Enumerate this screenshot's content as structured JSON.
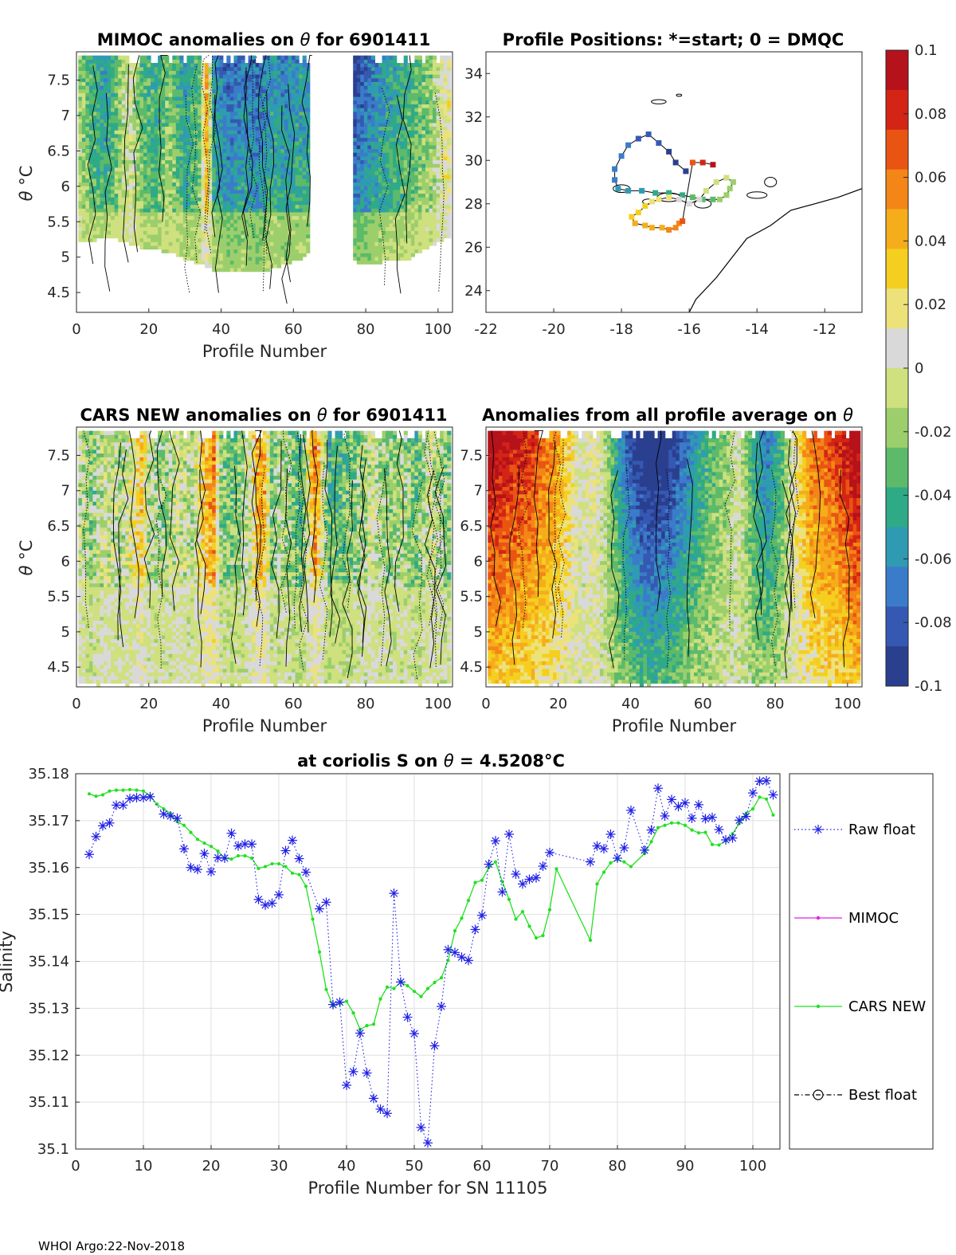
{
  "footer": "WHOI Argo:22-Nov-2018",
  "colorbar": {
    "ticks": [
      "0.1",
      "0.08",
      "0.06",
      "0.04",
      "0.02",
      "0",
      "-0.02",
      "-0.04",
      "-0.06",
      "-0.08",
      "-0.1"
    ],
    "colors": [
      "#2b3f8f",
      "#3559b3",
      "#3a7cc9",
      "#2f9bb3",
      "#2faa86",
      "#5cba6a",
      "#9ccf6c",
      "#cfe07f",
      "#d9d9d9",
      "#ede27a",
      "#f5cf20",
      "#f6ad1b",
      "#f38617",
      "#ea5413",
      "#d32415",
      "#b5121b"
    ]
  },
  "panels": {
    "mimoc": {
      "title_prefix": "MIMOC anomalies on ",
      "theta": "θ",
      "title_suffix": "  for 6901411",
      "xlabel": "Profile Number",
      "ylabel_theta": "θ",
      "ylabel_unit": " °C",
      "xticks": [
        "0",
        "20",
        "40",
        "60",
        "80",
        "100"
      ],
      "yticks": [
        "4.5",
        "5",
        "5.5",
        "6",
        "6.5",
        "7",
        "7.5"
      ]
    },
    "positions": {
      "title": "Profile Positions: *=start; 0 = DMQC",
      "xticks": [
        "-22",
        "-20",
        "-18",
        "-16",
        "-14",
        "-12"
      ],
      "yticks": [
        "24",
        "26",
        "28",
        "30",
        "32",
        "34"
      ]
    },
    "cars": {
      "title_prefix": "CARS NEW anomalies on ",
      "theta": "θ",
      "title_suffix": " for 6901411",
      "xlabel": "Profile Number",
      "ylabel_theta": "θ",
      "ylabel_unit": " °C",
      "xticks": [
        "0",
        "20",
        "40",
        "60",
        "80",
        "100"
      ],
      "yticks": [
        "4.5",
        "5",
        "5.5",
        "6",
        "6.5",
        "7",
        "7.5"
      ]
    },
    "average": {
      "title_prefix": "Anomalies from all profile average on ",
      "theta": "θ",
      "xlabel": "Profile Number",
      "xticks": [
        "0",
        "20",
        "40",
        "60",
        "80",
        "100"
      ],
      "yticks": [
        "4.5",
        "5",
        "5.5",
        "6",
        "6.5",
        "7",
        "7.5"
      ]
    }
  },
  "chart_data": [
    {
      "type": "heatmap",
      "title": "MIMOC anomalies on θ  for 6901411",
      "xlabel": "Profile Number",
      "ylabel": "θ °C",
      "xlim": [
        0,
        104
      ],
      "ylim": [
        4.22,
        7.9
      ],
      "zlim": [
        -0.1,
        0.1
      ],
      "missing_profiles": [
        [
          65,
          76
        ]
      ],
      "column_anomaly_profile": [
        [
          0,
          -0.01
        ],
        [
          3,
          -0.03
        ],
        [
          8,
          -0.05
        ],
        [
          12,
          -0.02
        ],
        [
          15,
          0.0
        ],
        [
          18,
          -0.03
        ],
        [
          22,
          -0.04
        ],
        [
          26,
          -0.02
        ],
        [
          30,
          -0.05
        ],
        [
          34,
          -0.03
        ],
        [
          36,
          0.04
        ],
        [
          38,
          -0.05
        ],
        [
          42,
          -0.07
        ],
        [
          46,
          -0.06
        ],
        [
          50,
          -0.07
        ],
        [
          54,
          -0.05
        ],
        [
          58,
          -0.06
        ],
        [
          62,
          -0.05
        ],
        [
          66,
          -0.06
        ],
        [
          78,
          -0.08
        ],
        [
          82,
          -0.06
        ],
        [
          86,
          -0.05
        ],
        [
          90,
          -0.04
        ],
        [
          94,
          -0.03
        ],
        [
          98,
          -0.02
        ],
        [
          102,
          0.01
        ]
      ],
      "column_bottom_theta": [
        [
          2,
          5.25
        ],
        [
          10,
          5.3
        ],
        [
          18,
          5.15
        ],
        [
          26,
          5.1
        ],
        [
          30,
          5.0
        ],
        [
          36,
          4.9
        ],
        [
          40,
          4.8
        ],
        [
          50,
          4.8
        ],
        [
          56,
          4.9
        ],
        [
          62,
          5.0
        ],
        [
          66,
          5.15
        ],
        [
          78,
          4.95
        ],
        [
          84,
          4.95
        ],
        [
          92,
          5.0
        ],
        [
          100,
          5.25
        ],
        [
          103,
          5.3
        ]
      ]
    },
    {
      "type": "scatter",
      "title": "Profile Positions: *=start; 0 = DMQC",
      "xlabel": "",
      "ylabel": "",
      "xlim": [
        -22,
        -10.9
      ],
      "ylim": [
        23,
        35
      ],
      "series": [
        {
          "name": "profile positions (colored by profile number)",
          "lon": [
            -16.1,
            -16.4,
            -16.6,
            -16.9,
            -17.2,
            -17.5,
            -17.8,
            -18.0,
            -18.2,
            -18.2,
            -18.1,
            -17.8,
            -17.4,
            -17.0,
            -16.6,
            -16.2,
            -15.9,
            -15.6,
            -15.3,
            -15.1,
            -14.9,
            -14.8,
            -14.7,
            -14.9,
            -15.2,
            -15.5,
            -15.7,
            -16.0,
            -16.3,
            -16.6,
            -16.9,
            -17.1,
            -17.3,
            -17.5,
            -17.7,
            -17.6,
            -17.3,
            -17.1,
            -16.8,
            -16.6,
            -16.4,
            -16.3,
            -16.2,
            -15.9,
            -15.6,
            -15.3
          ],
          "lat": [
            29.5,
            29.9,
            30.4,
            30.8,
            31.2,
            31.0,
            30.7,
            30.2,
            29.6,
            29.1,
            28.7,
            28.6,
            28.6,
            28.5,
            28.5,
            28.4,
            28.3,
            28.2,
            28.2,
            28.2,
            28.4,
            28.7,
            29.0,
            29.2,
            29.0,
            28.6,
            28.2,
            28.0,
            28.2,
            28.3,
            28.2,
            28.1,
            27.9,
            27.6,
            27.4,
            27.1,
            27.0,
            26.9,
            26.9,
            26.8,
            26.9,
            27.1,
            27.2,
            29.9,
            29.9,
            29.8
          ],
          "profile_number": [
            1,
            3,
            5,
            7,
            9,
            11,
            13,
            15,
            17,
            19,
            21,
            23,
            25,
            27,
            29,
            31,
            33,
            35,
            37,
            39,
            41,
            43,
            45,
            47,
            49,
            51,
            53,
            55,
            57,
            59,
            61,
            63,
            65,
            67,
            69,
            71,
            73,
            75,
            77,
            79,
            81,
            83,
            85,
            87,
            95,
            103
          ]
        }
      ]
    },
    {
      "type": "heatmap",
      "title": "CARS NEW anomalies on θ for 6901411",
      "xlabel": "Profile Number",
      "ylabel": "θ °C",
      "xlim": [
        0,
        104
      ],
      "ylim": [
        4.22,
        7.9
      ],
      "zlim": [
        -0.1,
        0.1
      ],
      "column_anomaly_profile": [
        [
          0,
          0.0
        ],
        [
          4,
          -0.02
        ],
        [
          8,
          0.0
        ],
        [
          12,
          -0.01
        ],
        [
          16,
          0.01
        ],
        [
          18,
          0.03
        ],
        [
          20,
          -0.01
        ],
        [
          24,
          -0.02
        ],
        [
          28,
          0.0
        ],
        [
          32,
          -0.01
        ],
        [
          36,
          0.04
        ],
        [
          38,
          0.05
        ],
        [
          40,
          -0.02
        ],
        [
          44,
          -0.03
        ],
        [
          48,
          0.0
        ],
        [
          50,
          0.04
        ],
        [
          52,
          0.04
        ],
        [
          54,
          -0.02
        ],
        [
          58,
          -0.01
        ],
        [
          62,
          -0.04
        ],
        [
          66,
          0.05
        ],
        [
          70,
          -0.04
        ],
        [
          74,
          -0.03
        ],
        [
          78,
          -0.02
        ],
        [
          82,
          0.0
        ],
        [
          86,
          -0.02
        ],
        [
          90,
          -0.01
        ],
        [
          94,
          -0.03
        ],
        [
          98,
          0.0
        ],
        [
          102,
          -0.02
        ]
      ]
    },
    {
      "type": "heatmap",
      "title": "Anomalies from all profile average on θ",
      "xlabel": "Profile Number",
      "ylabel": "",
      "xlim": [
        0,
        104
      ],
      "ylim": [
        4.22,
        7.9
      ],
      "zlim": [
        -0.1,
        0.1
      ],
      "column_anomaly_profile": [
        [
          0,
          0.09
        ],
        [
          6,
          0.08
        ],
        [
          12,
          0.07
        ],
        [
          18,
          0.05
        ],
        [
          22,
          0.03
        ],
        [
          26,
          0.0
        ],
        [
          30,
          0.01
        ],
        [
          34,
          -0.02
        ],
        [
          38,
          -0.06
        ],
        [
          42,
          -0.09
        ],
        [
          46,
          -0.1
        ],
        [
          50,
          -0.09
        ],
        [
          54,
          -0.07
        ],
        [
          58,
          -0.05
        ],
        [
          62,
          -0.03
        ],
        [
          66,
          -0.02
        ],
        [
          70,
          0.0
        ],
        [
          74,
          -0.04
        ],
        [
          78,
          -0.06
        ],
        [
          82,
          -0.03
        ],
        [
          86,
          0.02
        ],
        [
          90,
          0.05
        ],
        [
          94,
          0.06
        ],
        [
          98,
          0.07
        ],
        [
          102,
          0.09
        ]
      ]
    },
    {
      "type": "line",
      "title": "at coriolis S on θ = 4.5208°C",
      "title_prefix": "at coriolis S on ",
      "title_theta": "θ",
      "title_value": " = 4.5208",
      "title_unit": "°C",
      "xlabel": "Profile Number for SN 11105",
      "ylabel": "Salinity",
      "xlim": [
        0,
        104
      ],
      "ylim": [
        35.1,
        35.18
      ],
      "xticks": [
        "0",
        "10",
        "20",
        "30",
        "40",
        "50",
        "60",
        "70",
        "80",
        "90",
        "100"
      ],
      "yticks": [
        "35.1",
        "35.11",
        "35.12",
        "35.13",
        "35.14",
        "35.15",
        "35.16",
        "35.17",
        "35.18"
      ],
      "grid": true,
      "legend": [
        "Raw float",
        "MIMOC",
        "CARS NEW",
        "Best float"
      ],
      "legend_placement": "right-outside",
      "series": [
        {
          "name": "Raw float",
          "x": [
            2,
            3,
            4,
            5,
            6,
            7,
            8,
            9,
            10,
            11,
            13,
            14,
            15,
            16,
            17,
            18,
            19,
            20,
            21,
            22,
            23,
            24,
            25,
            26,
            27,
            28,
            29,
            30,
            31,
            32,
            33,
            34,
            36,
            37,
            38,
            39,
            40,
            41,
            42,
            43,
            44,
            45,
            46,
            47,
            48,
            49,
            50,
            51,
            52,
            53,
            54,
            55,
            56,
            57,
            58,
            59,
            60,
            61,
            62,
            63,
            64,
            65,
            66,
            67,
            68,
            69,
            70,
            76,
            77,
            78,
            79,
            80,
            81,
            82,
            84,
            85,
            86,
            87,
            88,
            89,
            90,
            91,
            92,
            93,
            94,
            95,
            96,
            97,
            98,
            99,
            100,
            101,
            102,
            103
          ],
          "y": [
            35.1628,
            35.1666,
            35.1689,
            35.1695,
            35.1733,
            35.1733,
            35.1747,
            35.1749,
            35.1749,
            35.1751,
            35.1714,
            35.171,
            35.1705,
            35.164,
            35.16,
            35.1596,
            35.163,
            35.1591,
            35.1621,
            35.162,
            35.1673,
            35.1646,
            35.165,
            35.165,
            35.1532,
            35.152,
            35.1524,
            35.1542,
            35.1636,
            35.1658,
            35.1619,
            35.159,
            35.1512,
            35.1526,
            35.1308,
            35.1313,
            35.1136,
            35.1165,
            35.1247,
            35.1162,
            35.1108,
            35.1085,
            35.1076,
            35.1545,
            35.1356,
            35.1281,
            35.1246,
            35.1046,
            35.1013,
            35.122,
            35.1304,
            35.1425,
            35.1419,
            35.1409,
            35.1402,
            35.1468,
            35.1498,
            35.1607,
            35.1657,
            35.1548,
            35.1671,
            35.1586,
            35.1565,
            35.1575,
            35.1578,
            35.1603,
            35.1632,
            35.1612,
            35.1646,
            35.164,
            35.1671,
            35.162,
            35.1642,
            35.1722,
            35.1637,
            35.168,
            35.1769,
            35.171,
            35.1745,
            35.173,
            35.1738,
            35.1705,
            35.1734,
            35.1704,
            35.1707,
            35.1681,
            35.1659,
            35.1663,
            35.1701,
            35.1709,
            35.1759,
            35.1784,
            35.1785,
            35.1755
          ]
        },
        {
          "name": "MIMOC",
          "x": [],
          "y": []
        },
        {
          "name": "CARS NEW",
          "x": [
            2,
            3,
            4,
            5,
            6,
            7,
            8,
            9,
            10,
            11,
            12,
            13,
            14,
            15,
            16,
            17,
            18,
            19,
            20,
            21,
            22,
            23,
            24,
            25,
            26,
            27,
            28,
            29,
            30,
            31,
            32,
            33,
            34,
            35,
            36,
            37,
            38,
            39,
            40,
            41,
            42,
            43,
            44,
            45,
            46,
            47,
            48,
            49,
            50,
            51,
            52,
            53,
            54,
            55,
            56,
            57,
            58,
            59,
            60,
            61,
            62,
            63,
            64,
            65,
            66,
            67,
            68,
            69,
            70,
            71,
            76,
            77,
            78,
            79,
            80,
            81,
            82,
            84,
            85,
            86,
            87,
            88,
            89,
            90,
            91,
            92,
            93,
            94,
            95,
            96,
            97,
            98,
            99,
            100,
            101,
            102,
            103
          ],
          "y": [
            35.1757,
            35.1752,
            35.1755,
            35.1763,
            35.1765,
            35.1765,
            35.1766,
            35.1765,
            35.1763,
            35.1753,
            35.1735,
            35.1725,
            35.1715,
            35.1698,
            35.169,
            35.1675,
            35.166,
            35.1652,
            35.1645,
            35.1635,
            35.162,
            35.1618,
            35.1625,
            35.1625,
            35.162,
            35.1598,
            35.1602,
            35.1608,
            35.1608,
            35.1602,
            35.1588,
            35.1585,
            35.156,
            35.149,
            35.142,
            35.134,
            35.1305,
            35.131,
            35.1315,
            35.129,
            35.1255,
            35.1263,
            35.1266,
            35.132,
            35.1345,
            35.1342,
            35.1356,
            35.1348,
            35.1336,
            35.1325,
            35.1342,
            35.1355,
            35.1365,
            35.1402,
            35.1465,
            35.1492,
            35.153,
            35.1568,
            35.1573,
            35.16,
            35.1612,
            35.157,
            35.1532,
            35.149,
            35.1506,
            35.1475,
            35.145,
            35.1455,
            35.151,
            35.1597,
            35.1445,
            35.1565,
            35.159,
            35.161,
            35.1617,
            35.1612,
            35.1602,
            35.163,
            35.1655,
            35.1685,
            35.169,
            35.1695,
            35.1695,
            35.169,
            35.168,
            35.1674,
            35.1675,
            35.1649,
            35.1648,
            35.1657,
            35.1672,
            35.1694,
            35.1715,
            35.1725,
            35.175,
            35.1746,
            35.1712
          ]
        },
        {
          "name": "Best float",
          "x": [],
          "y": []
        }
      ]
    }
  ]
}
